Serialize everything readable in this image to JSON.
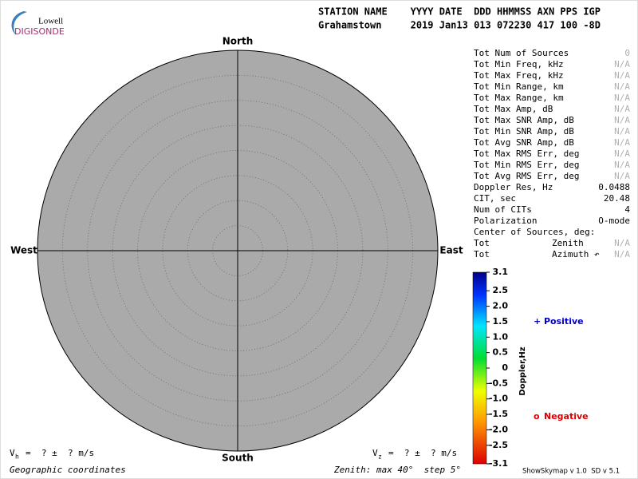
{
  "logo": {
    "small": "Lowell",
    "large": "DIGISONDE"
  },
  "header": {
    "line1": "STATION NAME    YYYY DATE  DDD HHMMSS AXN PPS IGP",
    "line2": "Grahamstown     2019 Jan13 013 072230 417 100 -8D"
  },
  "compass": {
    "north": "North",
    "south": "South",
    "west": "West",
    "east": "East"
  },
  "stats": {
    "rows": [
      {
        "label": "Tot Num of Sources",
        "value": 0,
        "muted": true
      },
      {
        "label": "Tot Min Freq, kHz",
        "value": "N/A",
        "muted": true
      },
      {
        "label": "Tot Max Freq, kHz",
        "value": "N/A",
        "muted": true
      },
      {
        "label": "Tot Min Range, km",
        "value": "N/A",
        "muted": true
      },
      {
        "label": "Tot Max Range, km",
        "value": "N/A",
        "muted": true
      },
      {
        "label": "Tot Max Amp, dB",
        "value": "N/A",
        "muted": true
      },
      {
        "label": "Tot Max SNR Amp, dB",
        "value": "N/A",
        "muted": true
      },
      {
        "label": "Tot Min SNR Amp, dB",
        "value": "N/A",
        "muted": true
      },
      {
        "label": "Tot Avg SNR Amp, dB",
        "value": "N/A",
        "muted": true
      },
      {
        "label": "Tot Max RMS Err, deg",
        "value": "N/A",
        "muted": true
      },
      {
        "label": "Tot Min RMS Err, deg",
        "value": "N/A",
        "muted": true
      },
      {
        "label": "Tot Avg RMS Err, deg",
        "value": "N/A",
        "muted": true
      },
      {
        "label": "Doppler Res, Hz",
        "value": 0.0488,
        "muted": false
      },
      {
        "label": "CIT, sec",
        "value": 20.48,
        "muted": false
      },
      {
        "label": "Num of CITs",
        "value": 4,
        "muted": false
      },
      {
        "label": "Polarization",
        "value": "O-mode",
        "muted": false
      },
      {
        "label": "Center of Sources, deg:"
      },
      {
        "label": "Tot",
        "sublabel": "Zenith",
        "value": "N/A",
        "muted": true
      },
      {
        "label": "Tot",
        "sublabel": "Azimuth ↶",
        "value": "N/A",
        "muted": true
      }
    ]
  },
  "colorbar": {
    "label": "Doppler,Hz",
    "lim": [
      -3.1,
      3.1
    ],
    "ticks": [
      3.1,
      2.5,
      {
        "value": 2,
        "label": "2.0"
      },
      1.5,
      {
        "value": 1,
        "label": "1.0"
      },
      0.5,
      0,
      -0.5,
      {
        "value": -1,
        "label": "-1.0"
      },
      -1.5,
      {
        "value": -2,
        "label": "-2.0"
      },
      -2.5,
      -3.1
    ]
  },
  "legend": {
    "positive": {
      "symbol": "+",
      "text": "Positive"
    },
    "negative": {
      "symbol": "o",
      "text": "Negative"
    }
  },
  "velocity": {
    "horizontal": {
      "symbol": "V",
      "subscript": "h",
      "text": "=  ? ±  ? m/s"
    },
    "vertical": {
      "symbol": "V",
      "subscript": "z",
      "text": "=  ? ±  ? m/s"
    }
  },
  "footer": {
    "coordinates": "Geographic coordinates",
    "zenith": "Zenith: max 40°  step 5°",
    "version": "ShowSkymap v 1.0  SD v 5.1"
  }
}
